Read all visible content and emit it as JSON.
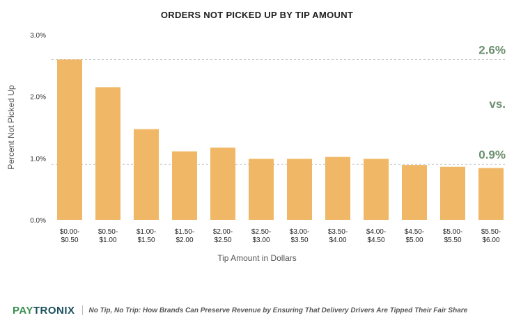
{
  "chart_data": {
    "type": "bar",
    "title": "ORDERS NOT PICKED UP BY TIP AMOUNT",
    "xlabel": "Tip Amount in Dollars",
    "ylabel": "Percent Not Picked Up",
    "ylim": [
      0,
      3.0
    ],
    "yticks": [
      {
        "value": 0,
        "label": "0.0%"
      },
      {
        "value": 1.0,
        "label": "1.0%"
      },
      {
        "value": 2.0,
        "label": "2.0%"
      },
      {
        "value": 3.0,
        "label": "3.0%"
      }
    ],
    "categories": [
      [
        "$0.00-",
        "$0.50"
      ],
      [
        "$0.50-",
        "$1.00"
      ],
      [
        "$1.00-",
        "$1.50"
      ],
      [
        "$1.50-",
        "$2.00"
      ],
      [
        "$2.00-",
        "$2.50"
      ],
      [
        "$2.50-",
        "$3.00"
      ],
      [
        "$3.00-",
        "$3.50"
      ],
      [
        "$3.50-",
        "$4.00"
      ],
      [
        "$4.00-",
        "$4.50"
      ],
      [
        "$4.50-",
        "$5.00"
      ],
      [
        "$5.00-",
        "$5.50"
      ],
      [
        "$5.50-",
        "$6.00"
      ]
    ],
    "values": [
      2.6,
      2.15,
      1.47,
      1.11,
      1.17,
      0.99,
      0.99,
      1.02,
      0.99,
      0.89,
      0.86,
      0.84
    ],
    "bar_color": "#f0b866",
    "reference_lines": [
      {
        "value": 2.6,
        "label": "2.6%"
      },
      {
        "value": 0.9,
        "label": "0.9%"
      }
    ],
    "comparison_label": "vs.",
    "annotation_color": "#6b8e6e",
    "grid": false
  },
  "footer": {
    "brand_part1": "PAY",
    "brand_part2": "TRONIX",
    "caption": "No Tip, No Trip: How Brands Can Preserve Revenue by Ensuring That Delivery Drivers Are Tipped Their Fair Share"
  }
}
